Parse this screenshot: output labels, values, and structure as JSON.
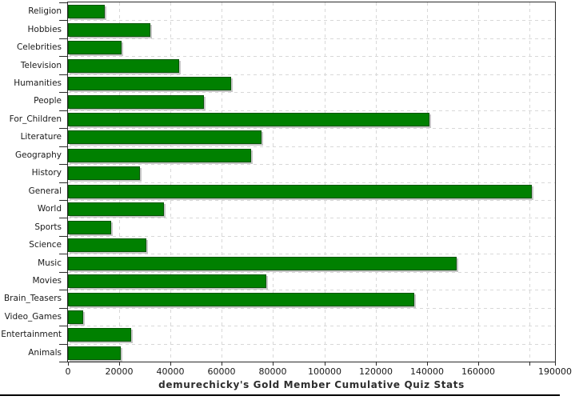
{
  "chart_data": {
    "type": "bar",
    "orientation": "horizontal",
    "title": "demurechicky's Gold Member Cumulative Quiz Stats",
    "categories": [
      "Religion",
      "Hobbies",
      "Celebrities",
      "Television",
      "Humanities",
      "People",
      "For_Children",
      "Literature",
      "Geography",
      "History",
      "General",
      "World",
      "Sports",
      "Science",
      "Music",
      "Movies",
      "Brain_Teasers",
      "Video_Games",
      "Entertainment",
      "Animals"
    ],
    "values": [
      14500,
      32000,
      21000,
      43500,
      63500,
      53000,
      141000,
      75500,
      71500,
      28000,
      181000,
      37500,
      17000,
      30500,
      151500,
      77500,
      135000,
      6000,
      24500,
      20500
    ],
    "xlabel": "",
    "ylabel": "",
    "xlim": [
      0,
      190000
    ],
    "x_ticks": [
      {
        "value": 0,
        "label": "0"
      },
      {
        "value": 20000,
        "label": "20000"
      },
      {
        "value": 40000,
        "label": "40000"
      },
      {
        "value": 60000,
        "label": "60000"
      },
      {
        "value": 80000,
        "label": "80000"
      },
      {
        "value": 100000,
        "label": "100000"
      },
      {
        "value": 120000,
        "label": "120000"
      },
      {
        "value": 140000,
        "label": "140000"
      },
      {
        "value": 160000,
        "label": "160000"
      },
      {
        "value": 180000,
        "label": ""
      },
      {
        "value": 190000,
        "label": "190000"
      }
    ],
    "grid": true,
    "legend": false,
    "bar_color": "#008000",
    "bar_border_color": "#045504",
    "bar_shadow_color": "#c6c6c6",
    "grid_color": "#d8d8d8",
    "axis_color": "#2a2a2a",
    "text_color": "#1a1a1a"
  }
}
